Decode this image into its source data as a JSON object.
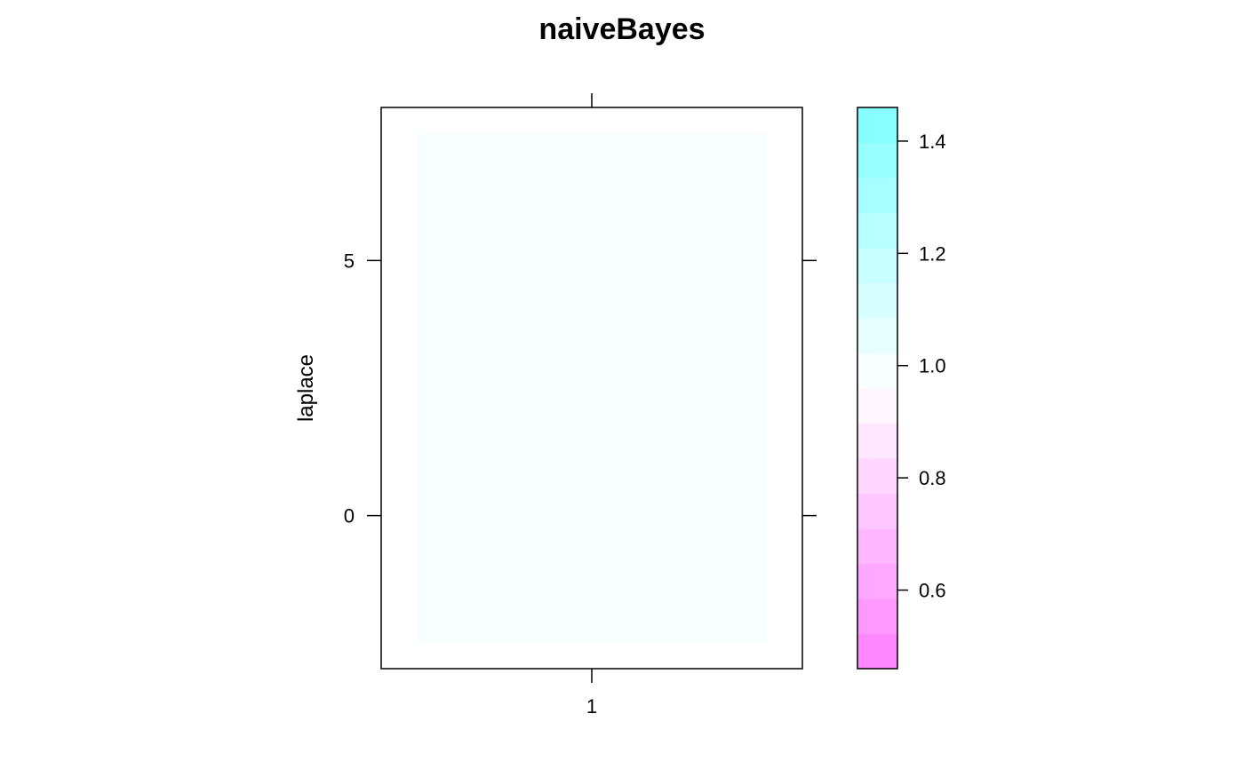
{
  "chart_data": {
    "type": "heatmap",
    "title": "naiveBayes",
    "xlabel": "",
    "ylabel": "laplace",
    "x_categories": [
      "1"
    ],
    "y_ticks": [
      0,
      5
    ],
    "ylim": [
      -3,
      8
    ],
    "cells": [
      {
        "x": "1",
        "y_range": [
          -2.5,
          7.5
        ],
        "value": 1.0
      }
    ],
    "colorbar": {
      "range": [
        0.46,
        1.46
      ],
      "ticks": [
        0.6,
        0.8,
        1.0,
        1.2,
        1.4
      ],
      "tick_labels": [
        "0.6",
        "0.8",
        "1.0",
        "1.2",
        "1.4"
      ],
      "low_color": "#ff80ff",
      "mid_color": "#ffffff",
      "high_color": "#80ffff",
      "levels": 16
    }
  }
}
